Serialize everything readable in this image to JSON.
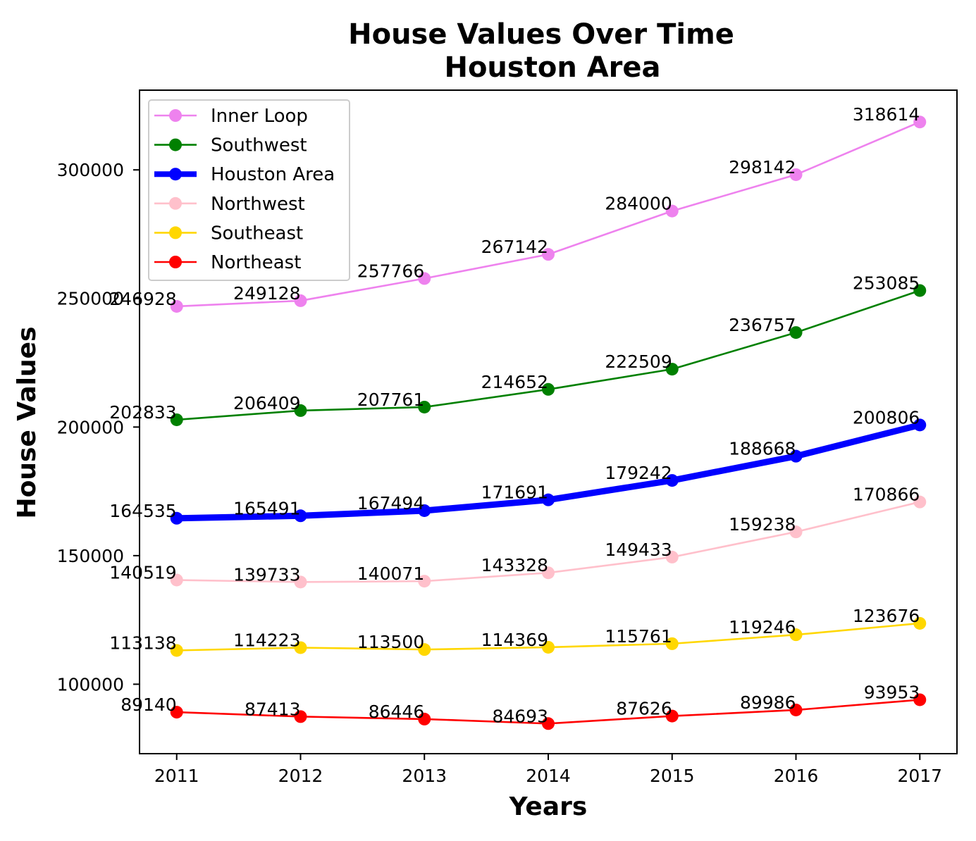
{
  "chart_data": {
    "type": "line",
    "title": "House Values Over Time",
    "subtitle": "Houston Area",
    "xlabel": "Years",
    "ylabel": "House Values",
    "x": [
      2011,
      2012,
      2013,
      2014,
      2015,
      2016,
      2017
    ],
    "x_tick_labels": [
      "2011",
      "2012",
      "2013",
      "2014",
      "2015",
      "2016",
      "2017"
    ],
    "y_ticks": [
      100000,
      150000,
      200000,
      250000,
      300000
    ],
    "y_tick_labels": [
      "100000",
      "150000",
      "200000",
      "250000",
      "300000"
    ],
    "xlim": [
      2010.7,
      2017.3
    ],
    "ylim": [
      73000,
      331000
    ],
    "grid": false,
    "legend_position": "top-left",
    "series": [
      {
        "name": "Inner Loop",
        "color": "#ee82ee",
        "emphasis": "normal",
        "values": [
          246928,
          249128,
          257766,
          267142,
          284000,
          298142,
          318614
        ],
        "labels": [
          "246928",
          "249128",
          "257766",
          "267142",
          "284000",
          "298142",
          "318614"
        ]
      },
      {
        "name": "Southwest",
        "color": "#008000",
        "emphasis": "normal",
        "values": [
          202833,
          206409,
          207761,
          214652,
          222509,
          236757,
          253085
        ],
        "labels": [
          "202833",
          "206409",
          "207761",
          "214652",
          "222509",
          "236757",
          "253085"
        ]
      },
      {
        "name": "Houston Area",
        "color": "#0000ff",
        "emphasis": "bold",
        "values": [
          164535,
          165491,
          167494,
          171691,
          179242,
          188668,
          200806
        ],
        "labels": [
          "164535",
          "165491",
          "167494",
          "171691",
          "179242",
          "188668",
          "200806"
        ]
      },
      {
        "name": "Northwest",
        "color": "#ffc0cb",
        "emphasis": "normal",
        "values": [
          140519,
          139733,
          140071,
          143328,
          149433,
          159238,
          170866
        ],
        "labels": [
          "140519",
          "139733",
          "140071",
          "143328",
          "149433",
          "159238",
          "170866"
        ]
      },
      {
        "name": "Southeast",
        "color": "#ffd700",
        "emphasis": "normal",
        "values": [
          113138,
          114223,
          113500,
          114369,
          115761,
          119246,
          123676
        ],
        "labels": [
          "113138",
          "114223",
          "113500",
          "114369",
          "115761",
          "119246",
          "123676"
        ]
      },
      {
        "name": "Northeast",
        "color": "#ff0000",
        "emphasis": "normal",
        "values": [
          89140,
          87413,
          86446,
          84693,
          87626,
          89986,
          93953
        ],
        "labels": [
          "89140",
          "87413",
          "86446",
          "84693",
          "87626",
          "89986",
          "93953"
        ]
      }
    ]
  }
}
